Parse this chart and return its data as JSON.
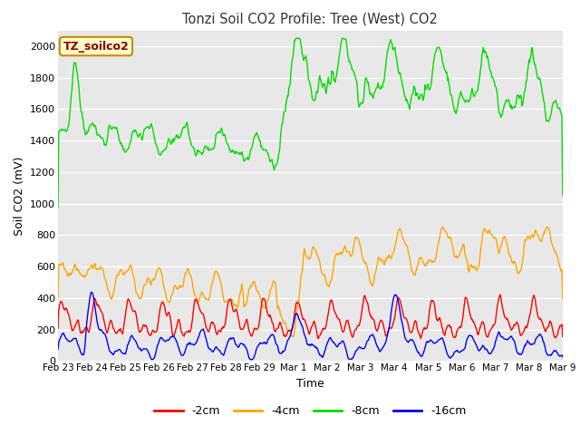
{
  "title": "Tonzi Soil CO2 Profile: Tree (West) CO2",
  "xlabel": "Time",
  "ylabel": "Soil CO2 (mV)",
  "legend_label": "TZ_soilco2",
  "ylim": [
    0,
    2100
  ],
  "yticks": [
    0,
    200,
    400,
    600,
    800,
    1000,
    1200,
    1400,
    1600,
    1800,
    2000
  ],
  "tick_labels": [
    "Feb 23",
    "Feb 24",
    "Feb 25",
    "Feb 26",
    "Feb 27",
    "Feb 28",
    "Feb 29",
    "Mar 1",
    "Mar 2",
    "Mar 3",
    "Mar 4",
    "Mar 5",
    "Mar 6",
    "Mar 7",
    "Mar 8",
    "Mar 9"
  ],
  "series": {
    "-2cm": {
      "color": "#ff0000",
      "label": "-2cm"
    },
    "-4cm": {
      "color": "#ffa500",
      "label": "-4cm"
    },
    "-8cm": {
      "color": "#00dd00",
      "label": "-8cm"
    },
    "-16cm": {
      "color": "#0000ff",
      "label": "-16cm"
    }
  },
  "bg_color": "#e8e8e8",
  "legend_box_facecolor": "#ffffcc",
  "legend_box_edgecolor": "#cc8800",
  "title_color": "#333333"
}
